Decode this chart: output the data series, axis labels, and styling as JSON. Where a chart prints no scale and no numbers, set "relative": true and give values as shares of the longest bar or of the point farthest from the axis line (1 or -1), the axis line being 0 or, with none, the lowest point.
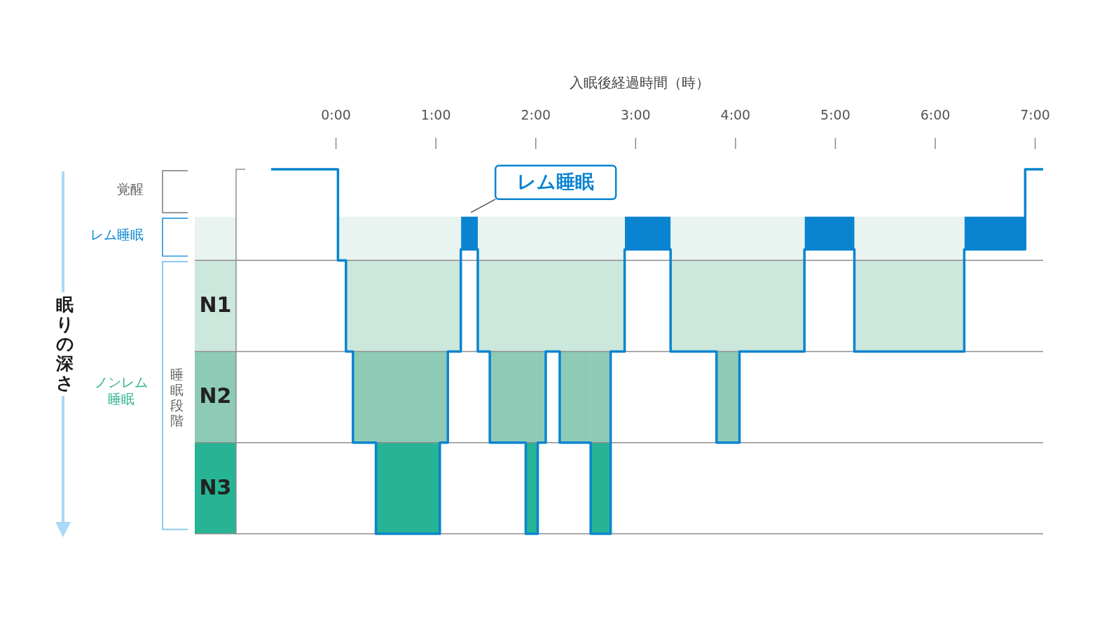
{
  "chart_data": {
    "type": "step",
    "relative": true,
    "xlabel": "入眠後経過時間（時）",
    "x": [
      -0.65,
      0.02,
      0.1,
      0.17,
      0.4,
      1.04,
      1.12,
      1.25,
      1.42,
      1.54,
      1.9,
      2.02,
      2.1,
      2.24,
      2.55,
      2.75,
      2.89,
      3.35,
      3.81,
      4.04,
      4.69,
      5.19,
      6.29,
      6.9,
      7.08
    ],
    "series": [
      {
        "color": "#0a84d0",
        "values": [
          1,
          0.75,
          0.5,
          0.25,
          0,
          0.25,
          0.5,
          0.78,
          0.5,
          0.25,
          0,
          0.25,
          0.5,
          0.25,
          0,
          0.5,
          0.78,
          0.5,
          0.25,
          0.5,
          0.78,
          0.5,
          0.78,
          1,
          1
        ],
        "lower": [
          null,
          null,
          null,
          null,
          null,
          null,
          null,
          0.78,
          null,
          null,
          null,
          null,
          null,
          null,
          null,
          null,
          0.78,
          null,
          null,
          null,
          0.78,
          null,
          0.78,
          0.87,
          null
        ],
        "upper": [
          null,
          null,
          null,
          null,
          null,
          null,
          null,
          0.87,
          null,
          null,
          null,
          null,
          null,
          null,
          null,
          null,
          0.87,
          null,
          null,
          null,
          0.87,
          null,
          0.87,
          0.87,
          null
        ]
      },
      {
        "color": "#e9f3f0",
        "values": [
          null,
          null,
          null,
          null,
          null,
          null,
          null,
          null,
          null,
          null,
          null,
          null,
          null,
          null,
          null,
          null,
          null,
          null,
          null,
          null,
          null,
          null,
          null,
          null,
          null
        ],
        "lower": [
          null,
          0.75,
          0.75,
          0.75,
          0.75,
          0.75,
          0.75,
          null,
          0.75,
          0.75,
          0.75,
          0.75,
          0.75,
          0.75,
          0.75,
          0.75,
          null,
          0.75,
          0.75,
          0.75,
          null,
          0.75,
          0.87,
          null,
          null
        ],
        "upper": [
          null,
          0.87,
          0.87,
          0.87,
          0.87,
          0.87,
          0.87,
          null,
          0.87,
          0.87,
          0.87,
          0.87,
          0.87,
          0.87,
          0.87,
          0.87,
          null,
          0.87,
          0.87,
          0.87,
          null,
          0.87,
          0.87,
          null,
          null
        ]
      },
      {
        "color": "#cce7db",
        "values": [
          null,
          null,
          null,
          null,
          null,
          null,
          null,
          null,
          null,
          null,
          null,
          null,
          null,
          null,
          null,
          null,
          null,
          null,
          null,
          null,
          null,
          null,
          null,
          null,
          null
        ],
        "lower": [
          null,
          null,
          0.5,
          0.5,
          0.5,
          0.5,
          0.5,
          null,
          0.5,
          0.5,
          0.5,
          0.5,
          0.5,
          0.5,
          0.5,
          0.5,
          null,
          0.5,
          0.5,
          0.5,
          null,
          0.5,
          0.75,
          null,
          null
        ],
        "upper": [
          null,
          null,
          0.75,
          0.75,
          0.75,
          0.75,
          0.75,
          null,
          0.75,
          0.75,
          0.75,
          0.75,
          0.75,
          0.75,
          0.75,
          0.75,
          null,
          0.75,
          0.75,
          0.75,
          null,
          0.75,
          0.75,
          null,
          null
        ]
      },
      {
        "color": "#8ecbb6",
        "values": [
          null,
          null,
          null,
          null,
          null,
          null,
          null,
          null,
          null,
          null,
          null,
          null,
          null,
          null,
          null,
          null,
          null,
          null,
          null,
          null,
          null,
          null,
          null,
          null,
          null
        ],
        "lower": [
          null,
          null,
          null,
          0.25,
          0.25,
          0.25,
          null,
          null,
          null,
          0.25,
          0.25,
          0.25,
          null,
          0.25,
          0.25,
          null,
          null,
          null,
          0.25,
          0.5,
          null,
          null,
          null,
          null,
          null
        ],
        "upper": [
          null,
          null,
          null,
          0.5,
          0.5,
          0.5,
          null,
          null,
          null,
          0.5,
          0.5,
          0.5,
          null,
          0.5,
          0.5,
          null,
          null,
          null,
          0.5,
          0.5,
          null,
          null,
          null,
          null,
          null
        ]
      },
      {
        "color": "#27b495",
        "values": [
          null,
          null,
          null,
          null,
          null,
          null,
          null,
          null,
          null,
          null,
          null,
          null,
          null,
          null,
          null,
          null,
          null,
          null,
          null,
          null,
          null,
          null,
          null,
          null,
          null
        ],
        "lower": [
          null,
          null,
          null,
          null,
          0,
          null,
          null,
          null,
          null,
          null,
          0,
          null,
          null,
          null,
          0,
          0.25,
          null,
          null,
          null,
          null,
          null,
          null,
          null,
          null,
          null
        ],
        "upper": [
          null,
          null,
          null,
          null,
          0.25,
          null,
          null,
          null,
          null,
          null,
          0.25,
          null,
          null,
          null,
          0.25,
          0.25,
          null,
          null,
          null,
          null,
          null,
          null,
          null,
          null,
          null
        ]
      }
    ],
    "xlim": [
      -1,
      7.08
    ],
    "xticks": [
      {
        "value": 0,
        "label": "0:00"
      },
      {
        "value": 1,
        "label": "1:00"
      },
      {
        "value": 2,
        "label": "2:00"
      },
      {
        "value": 3,
        "label": "3:00"
      },
      {
        "value": 4,
        "label": "4:00"
      },
      {
        "value": 5,
        "label": "5:00"
      },
      {
        "value": 6,
        "label": "6:00"
      },
      {
        "value": 7,
        "label": "7:00"
      }
    ],
    "ref_lines": [
      {
        "axis": "y",
        "value": 0.75,
        "color": "#8e8e8e"
      },
      {
        "axis": "y",
        "value": 0.5,
        "color": "#8e8e8e"
      },
      {
        "axis": "y",
        "value": 0.25,
        "color": "#8e8e8e"
      }
    ],
    "annotations": [
      "覚醒",
      "レム睡眠",
      "N1",
      "N2",
      "N3",
      "ノンレム睡眠",
      "睡眠段階",
      "眠りの深さ",
      {
        "text": "レム睡眠",
        "x": 1.33,
        "y": 0.87
      }
    ],
    "grid": false,
    "legend": false,
    "marker": "none",
    "line_style": "solid"
  }
}
